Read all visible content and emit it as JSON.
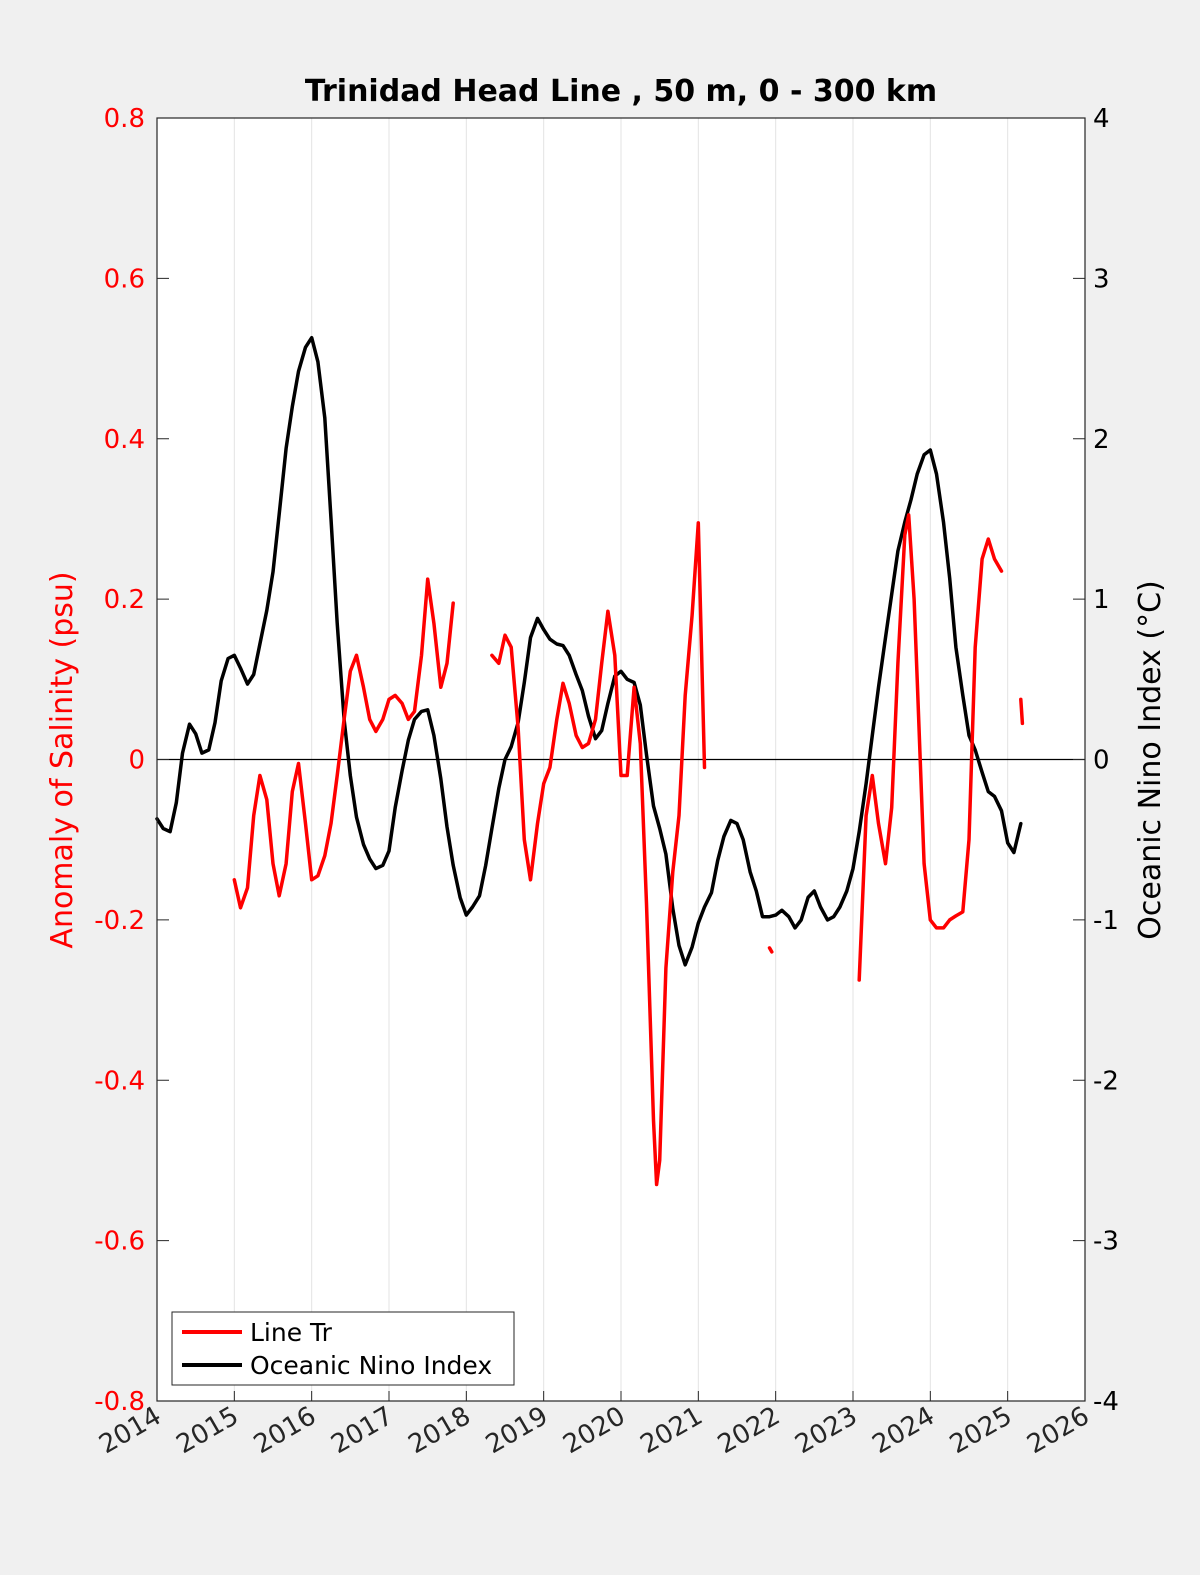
{
  "chart_data": {
    "type": "line",
    "title": "Trinidad Head Line , 50 m, 0 - 300 km",
    "xlim": [
      2014,
      2026
    ],
    "xticks": [
      "2014",
      "2015",
      "2016",
      "2017",
      "2018",
      "2019",
      "2020",
      "2021",
      "2022",
      "2023",
      "2024",
      "2025",
      "2026"
    ],
    "ylabel_left": "Anomaly of Salinity (psu)",
    "ylim_left": [
      -0.8,
      0.8
    ],
    "yticks_left": [
      "-0.8",
      "-0.6",
      "-0.4",
      "-0.2",
      "0",
      "0.2",
      "0.4",
      "0.6",
      "0.8"
    ],
    "ylabel_right": "Oceanic Nino Index (°C)",
    "ylim_right": [
      -4,
      4
    ],
    "yticks_right": [
      "-4",
      "-3",
      "-2",
      "-1",
      "0",
      "1",
      "2",
      "3",
      "4"
    ],
    "grid": "x-only",
    "zero_line": true,
    "legend_position": "bottom-left",
    "colors": {
      "salinity": "#ff0000",
      "oni": "#000000",
      "left_axis": "#ff0000",
      "right_axis": "#000000"
    },
    "series": [
      {
        "name": "Line Tr",
        "axis": "left",
        "segments": [
          [
            [
              2015.0,
              -0.15
            ],
            [
              2015.08,
              -0.185
            ],
            [
              2015.17,
              -0.16
            ],
            [
              2015.25,
              -0.07
            ],
            [
              2015.33,
              -0.02
            ],
            [
              2015.42,
              -0.05
            ],
            [
              2015.5,
              -0.13
            ],
            [
              2015.58,
              -0.17
            ],
            [
              2015.67,
              -0.13
            ],
            [
              2015.75,
              -0.04
            ],
            [
              2015.83,
              -0.005
            ],
            [
              2015.92,
              -0.08
            ],
            [
              2016.0,
              -0.15
            ],
            [
              2016.08,
              -0.145
            ],
            [
              2016.17,
              -0.12
            ],
            [
              2016.25,
              -0.08
            ],
            [
              2016.33,
              -0.02
            ],
            [
              2016.42,
              0.05
            ],
            [
              2016.5,
              0.11
            ],
            [
              2016.58,
              0.13
            ],
            [
              2016.67,
              0.09
            ],
            [
              2016.75,
              0.05
            ],
            [
              2016.83,
              0.035
            ],
            [
              2016.92,
              0.05
            ],
            [
              2017.0,
              0.075
            ],
            [
              2017.08,
              0.08
            ],
            [
              2017.17,
              0.07
            ],
            [
              2017.25,
              0.05
            ],
            [
              2017.33,
              0.06
            ],
            [
              2017.42,
              0.13
            ],
            [
              2017.5,
              0.225
            ],
            [
              2017.58,
              0.17
            ],
            [
              2017.67,
              0.09
            ],
            [
              2017.75,
              0.12
            ],
            [
              2017.83,
              0.195
            ]
          ],
          [
            [
              2018.33,
              0.13
            ],
            [
              2018.42,
              0.12
            ],
            [
              2018.5,
              0.155
            ],
            [
              2018.58,
              0.14
            ],
            [
              2018.67,
              0.04
            ],
            [
              2018.75,
              -0.1
            ],
            [
              2018.83,
              -0.15
            ],
            [
              2018.92,
              -0.08
            ],
            [
              2019.0,
              -0.03
            ],
            [
              2019.08,
              -0.01
            ],
            [
              2019.17,
              0.05
            ],
            [
              2019.25,
              0.095
            ],
            [
              2019.33,
              0.07
            ],
            [
              2019.42,
              0.03
            ],
            [
              2019.5,
              0.015
            ],
            [
              2019.58,
              0.02
            ],
            [
              2019.67,
              0.05
            ],
            [
              2019.75,
              0.12
            ],
            [
              2019.83,
              0.185
            ],
            [
              2019.92,
              0.13
            ],
            [
              2020.0,
              -0.02
            ],
            [
              2020.08,
              -0.02
            ],
            [
              2020.17,
              0.09
            ],
            [
              2020.25,
              0.02
            ],
            [
              2020.33,
              -0.18
            ],
            [
              2020.42,
              -0.45
            ],
            [
              2020.46,
              -0.53
            ],
            [
              2020.5,
              -0.5
            ],
            [
              2020.58,
              -0.26
            ],
            [
              2020.67,
              -0.14
            ],
            [
              2020.75,
              -0.07
            ],
            [
              2020.83,
              0.08
            ],
            [
              2020.92,
              0.18
            ],
            [
              2021.0,
              0.295
            ],
            [
              2021.08,
              -0.01
            ]
          ],
          [
            [
              2021.92,
              -0.235
            ],
            [
              2021.95,
              -0.24
            ]
          ],
          [
            [
              2023.08,
              -0.275
            ],
            [
              2023.17,
              -0.07
            ],
            [
              2023.25,
              -0.02
            ],
            [
              2023.33,
              -0.08
            ],
            [
              2023.42,
              -0.13
            ],
            [
              2023.5,
              -0.06
            ],
            [
              2023.58,
              0.12
            ],
            [
              2023.67,
              0.28
            ],
            [
              2023.72,
              0.305
            ],
            [
              2023.79,
              0.2
            ],
            [
              2023.83,
              0.1
            ],
            [
              2023.92,
              -0.13
            ],
            [
              2024.0,
              -0.2
            ],
            [
              2024.08,
              -0.21
            ],
            [
              2024.17,
              -0.21
            ],
            [
              2024.25,
              -0.2
            ],
            [
              2024.33,
              -0.195
            ],
            [
              2024.42,
              -0.19
            ],
            [
              2024.5,
              -0.1
            ],
            [
              2024.58,
              0.14
            ],
            [
              2024.67,
              0.25
            ],
            [
              2024.75,
              0.275
            ],
            [
              2024.83,
              0.25
            ],
            [
              2024.92,
              0.235
            ]
          ],
          [
            [
              2025.17,
              0.075
            ],
            [
              2025.19,
              0.045
            ]
          ]
        ]
      },
      {
        "name": "Oceanic Nino Index",
        "axis": "right",
        "segments": [
          [
            [
              2014.0,
              -0.37
            ],
            [
              2014.08,
              -0.43
            ],
            [
              2014.17,
              -0.45
            ],
            [
              2014.25,
              -0.27
            ],
            [
              2014.33,
              0.04
            ],
            [
              2014.42,
              0.22
            ],
            [
              2014.5,
              0.16
            ],
            [
              2014.58,
              0.04
            ],
            [
              2014.67,
              0.06
            ],
            [
              2014.75,
              0.23
            ],
            [
              2014.83,
              0.49
            ],
            [
              2014.92,
              0.63
            ],
            [
              2015.0,
              0.65
            ],
            [
              2015.08,
              0.57
            ],
            [
              2015.17,
              0.47
            ],
            [
              2015.25,
              0.53
            ],
            [
              2015.33,
              0.72
            ],
            [
              2015.42,
              0.93
            ],
            [
              2015.5,
              1.17
            ],
            [
              2015.58,
              1.53
            ],
            [
              2015.67,
              1.94
            ],
            [
              2015.75,
              2.2
            ],
            [
              2015.83,
              2.42
            ],
            [
              2015.92,
              2.57
            ],
            [
              2016.0,
              2.63
            ],
            [
              2016.08,
              2.48
            ],
            [
              2016.17,
              2.13
            ],
            [
              2016.25,
              1.5
            ],
            [
              2016.33,
              0.85
            ],
            [
              2016.42,
              0.25
            ],
            [
              2016.5,
              -0.1
            ],
            [
              2016.58,
              -0.36
            ],
            [
              2016.67,
              -0.53
            ],
            [
              2016.75,
              -0.62
            ],
            [
              2016.83,
              -0.68
            ],
            [
              2016.92,
              -0.66
            ],
            [
              2017.0,
              -0.57
            ],
            [
              2017.08,
              -0.3
            ],
            [
              2017.17,
              -0.07
            ],
            [
              2017.25,
              0.12
            ],
            [
              2017.33,
              0.25
            ],
            [
              2017.42,
              0.3
            ],
            [
              2017.5,
              0.31
            ],
            [
              2017.58,
              0.15
            ],
            [
              2017.67,
              -0.12
            ],
            [
              2017.75,
              -0.42
            ],
            [
              2017.83,
              -0.66
            ],
            [
              2017.92,
              -0.86
            ],
            [
              2018.0,
              -0.97
            ],
            [
              2018.08,
              -0.92
            ],
            [
              2018.17,
              -0.85
            ],
            [
              2018.25,
              -0.66
            ],
            [
              2018.33,
              -0.43
            ],
            [
              2018.42,
              -0.18
            ],
            [
              2018.5,
              0.0
            ],
            [
              2018.58,
              0.08
            ],
            [
              2018.67,
              0.23
            ],
            [
              2018.75,
              0.48
            ],
            [
              2018.83,
              0.76
            ],
            [
              2018.92,
              0.88
            ],
            [
              2019.0,
              0.81
            ],
            [
              2019.08,
              0.75
            ],
            [
              2019.17,
              0.72
            ],
            [
              2019.25,
              0.71
            ],
            [
              2019.33,
              0.65
            ],
            [
              2019.42,
              0.53
            ],
            [
              2019.5,
              0.43
            ],
            [
              2019.58,
              0.27
            ],
            [
              2019.67,
              0.13
            ],
            [
              2019.75,
              0.18
            ],
            [
              2019.83,
              0.35
            ],
            [
              2019.92,
              0.52
            ],
            [
              2020.0,
              0.55
            ],
            [
              2020.08,
              0.5
            ],
            [
              2020.17,
              0.48
            ],
            [
              2020.25,
              0.34
            ],
            [
              2020.33,
              0.03
            ],
            [
              2020.42,
              -0.29
            ],
            [
              2020.5,
              -0.43
            ],
            [
              2020.58,
              -0.59
            ],
            [
              2020.67,
              -0.93
            ],
            [
              2020.75,
              -1.16
            ],
            [
              2020.83,
              -1.28
            ],
            [
              2020.92,
              -1.17
            ],
            [
              2021.0,
              -1.02
            ],
            [
              2021.08,
              -0.92
            ],
            [
              2021.17,
              -0.83
            ],
            [
              2021.25,
              -0.63
            ],
            [
              2021.33,
              -0.48
            ],
            [
              2021.42,
              -0.38
            ],
            [
              2021.5,
              -0.4
            ],
            [
              2021.58,
              -0.5
            ],
            [
              2021.67,
              -0.7
            ],
            [
              2021.75,
              -0.82
            ],
            [
              2021.83,
              -0.98
            ],
            [
              2021.92,
              -0.98
            ],
            [
              2022.0,
              -0.97
            ],
            [
              2022.08,
              -0.94
            ],
            [
              2022.17,
              -0.98
            ],
            [
              2022.25,
              -1.05
            ],
            [
              2022.33,
              -1.0
            ],
            [
              2022.42,
              -0.86
            ],
            [
              2022.5,
              -0.82
            ],
            [
              2022.58,
              -0.92
            ],
            [
              2022.67,
              -1.0
            ],
            [
              2022.75,
              -0.98
            ],
            [
              2022.83,
              -0.92
            ],
            [
              2022.92,
              -0.82
            ],
            [
              2023.0,
              -0.68
            ],
            [
              2023.08,
              -0.45
            ],
            [
              2023.17,
              -0.15
            ],
            [
              2023.25,
              0.15
            ],
            [
              2023.33,
              0.45
            ],
            [
              2023.42,
              0.76
            ],
            [
              2023.5,
              1.03
            ],
            [
              2023.58,
              1.3
            ],
            [
              2023.67,
              1.48
            ],
            [
              2023.75,
              1.62
            ],
            [
              2023.83,
              1.78
            ],
            [
              2023.92,
              1.9
            ],
            [
              2024.0,
              1.93
            ],
            [
              2024.08,
              1.78
            ],
            [
              2024.17,
              1.48
            ],
            [
              2024.25,
              1.13
            ],
            [
              2024.33,
              0.7
            ],
            [
              2024.42,
              0.4
            ],
            [
              2024.5,
              0.15
            ],
            [
              2024.58,
              0.06
            ],
            [
              2024.67,
              -0.08
            ],
            [
              2024.75,
              -0.2
            ],
            [
              2024.83,
              -0.23
            ],
            [
              2024.92,
              -0.32
            ],
            [
              2025.0,
              -0.52
            ],
            [
              2025.08,
              -0.58
            ],
            [
              2025.17,
              -0.4
            ]
          ]
        ]
      }
    ]
  },
  "legend": {
    "items": [
      {
        "label": "Line Tr",
        "color": "#ff0000"
      },
      {
        "label": "Oceanic Nino Index",
        "color": "#000000"
      }
    ]
  }
}
